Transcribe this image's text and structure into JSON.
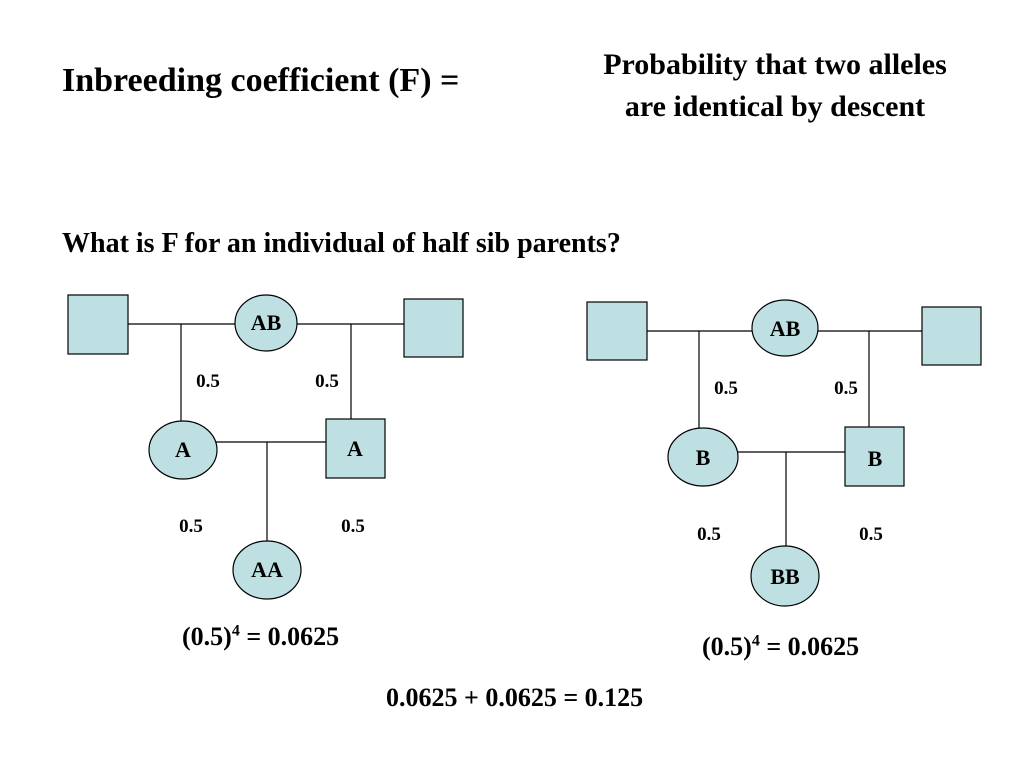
{
  "title": "Inbreeding coefficient (F) =",
  "definition": {
    "line1": "Probability that two alleles",
    "line2": "are identical by descent"
  },
  "question": "What is F for an individual of half sib parents?",
  "pedigree_left": {
    "common_ancestor": "AB",
    "parent_left": "A",
    "parent_right": "A",
    "offspring": "AA",
    "prob_upper_left": "0.5",
    "prob_upper_right": "0.5",
    "prob_lower_left": "0.5",
    "prob_lower_right": "0.5",
    "formula_base": "(0.5)",
    "formula_exp": "4",
    "formula_result": " = 0.0625"
  },
  "pedigree_right": {
    "common_ancestor": "AB",
    "parent_left": "B",
    "parent_right": "B",
    "offspring": "BB",
    "prob_upper_left": "0.5",
    "prob_upper_right": "0.5",
    "prob_lower_left": "0.5",
    "prob_lower_right": "0.5",
    "formula_base": "(0.5)",
    "formula_exp": "4",
    "formula_result": " = 0.0625"
  },
  "total": "0.0625 + 0.0625 = 0.125",
  "colors": {
    "node_fill": "#bfe0e3",
    "stroke": "#000000"
  }
}
